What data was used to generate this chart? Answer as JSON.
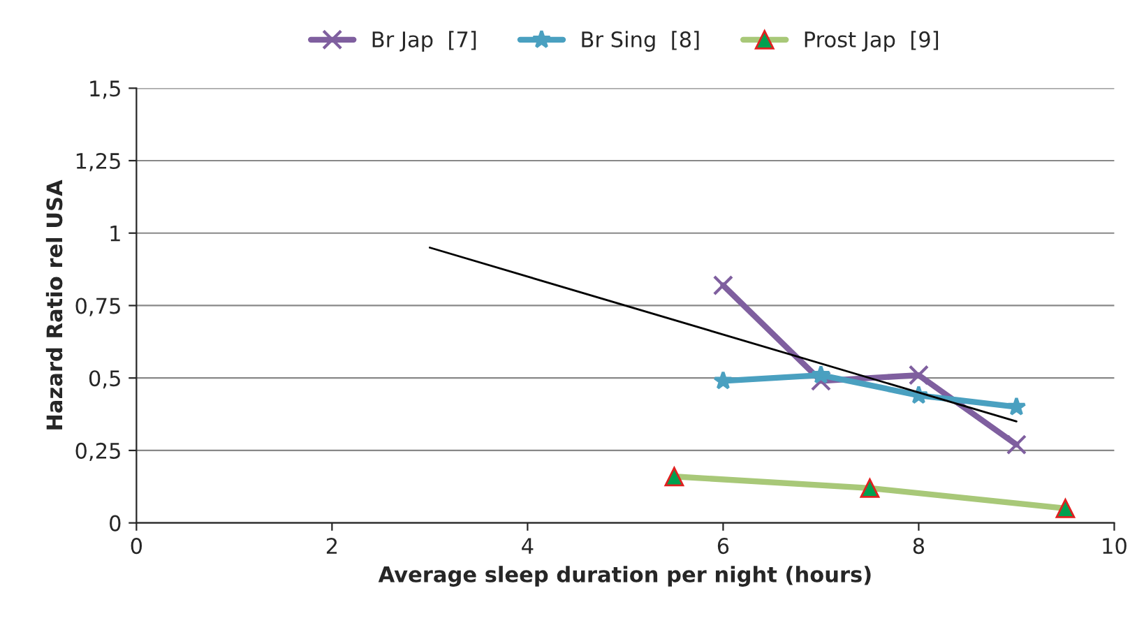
{
  "chart_data": {
    "type": "line",
    "xlabel": "Average sleep duration per night (hours)",
    "ylabel": "Hazard Ratio rel USA",
    "series": [
      {
        "name": "Br Jap  [7]",
        "color": "#7f5f9f",
        "marker": "cross",
        "x": [
          6,
          7,
          8,
          9
        ],
        "values": [
          0.82,
          0.49,
          0.51,
          0.27
        ]
      },
      {
        "name": "Br Sing  [8]",
        "color": "#4aa0c0",
        "marker": "star",
        "x": [
          6,
          7,
          8,
          9
        ],
        "values": [
          0.49,
          0.51,
          0.44,
          0.4
        ]
      },
      {
        "name": "Prost Jap  [9]",
        "color": "#a8c878",
        "marker": "triangle",
        "x": [
          5.5,
          7.5,
          9.5
        ],
        "values": [
          0.16,
          0.12,
          0.05
        ]
      },
      {
        "color": "#000000",
        "marker": "none",
        "x": [
          3,
          9
        ],
        "values": [
          0.95,
          0.35
        ]
      }
    ],
    "xlim": [
      0,
      10
    ],
    "xticks": [
      0,
      2,
      4,
      6,
      8,
      10
    ],
    "ylim": [
      0,
      1.5
    ],
    "yticks": [
      0,
      {
        "value": 0.25,
        "label": "0,25"
      },
      {
        "value": 0.5,
        "label": "0,5"
      },
      {
        "value": 0.75,
        "label": "0,75"
      },
      1,
      {
        "value": 1.25,
        "label": "1,25"
      },
      {
        "value": 1.5,
        "label": "1,5"
      }
    ],
    "grid": "y",
    "legend": "top",
    "line_style": "solid"
  }
}
